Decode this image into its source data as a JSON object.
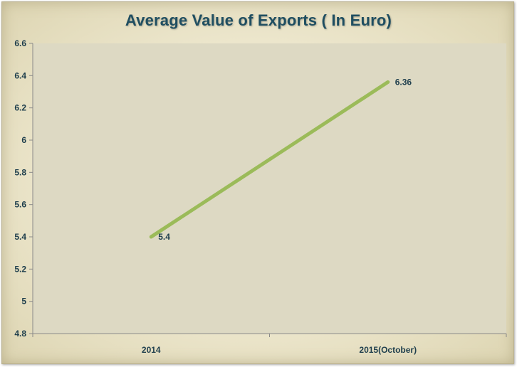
{
  "chart_data": {
    "type": "line",
    "title": "Average Value of Exports ( In Euro)",
    "categories": [
      "2014",
      "2015(October)"
    ],
    "series": [
      {
        "values": [
          5.4,
          6.36
        ],
        "color": "#9bbb59"
      }
    ],
    "data_labels": [
      "5.4",
      "6.36"
    ],
    "ylim": [
      4.8,
      6.6
    ],
    "yticks": [
      "4.8",
      "5",
      "5.2",
      "5.4",
      "5.6",
      "5.8",
      "6",
      "6.2",
      "6.4",
      "6.6"
    ],
    "grid": false,
    "legend": "none",
    "plot_background": "#ddd9c3"
  }
}
